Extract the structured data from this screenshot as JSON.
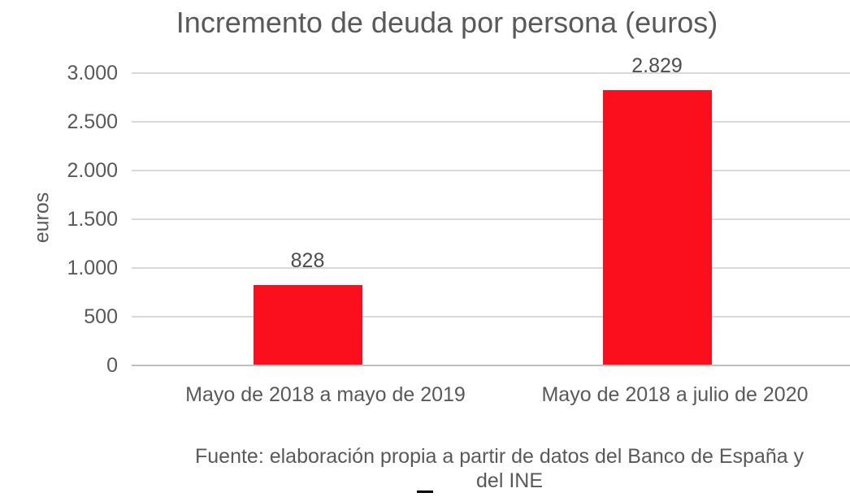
{
  "chart_data": {
    "type": "bar",
    "title": "Incremento de deuda por persona (euros)",
    "ylabel": "euros",
    "xlabel": "",
    "categories": [
      "Mayo de 2018 a mayo de 2019",
      "Mayo de 2018 a julio de 2020"
    ],
    "values": [
      828,
      2829
    ],
    "value_labels": [
      "828",
      "2.829"
    ],
    "ylim": [
      0,
      3000
    ],
    "yticks": [
      {
        "value": 0,
        "label": "0"
      },
      {
        "value": 500,
        "label": "500"
      },
      {
        "value": 1000,
        "label": "1.000"
      },
      {
        "value": 1500,
        "label": "1.500"
      },
      {
        "value": 2000,
        "label": "2.000"
      },
      {
        "value": 2500,
        "label": "2.500"
      },
      {
        "value": 3000,
        "label": "3.000"
      }
    ],
    "grid": true,
    "legend_position": "none",
    "bar_color": "#fb0f1c"
  },
  "source_note": {
    "line1": "Fuente: elaboración propia a partir de datos del Banco de España y",
    "line2": "del INE"
  },
  "colors": {
    "text": "#595959",
    "value_label_text": "#4d4d4d",
    "gridline": "#d9d9d9",
    "axis_line": "#bfbfbf",
    "bar": "#fb0f1c",
    "dash_mark": "#000000",
    "background": "#ffffff"
  }
}
